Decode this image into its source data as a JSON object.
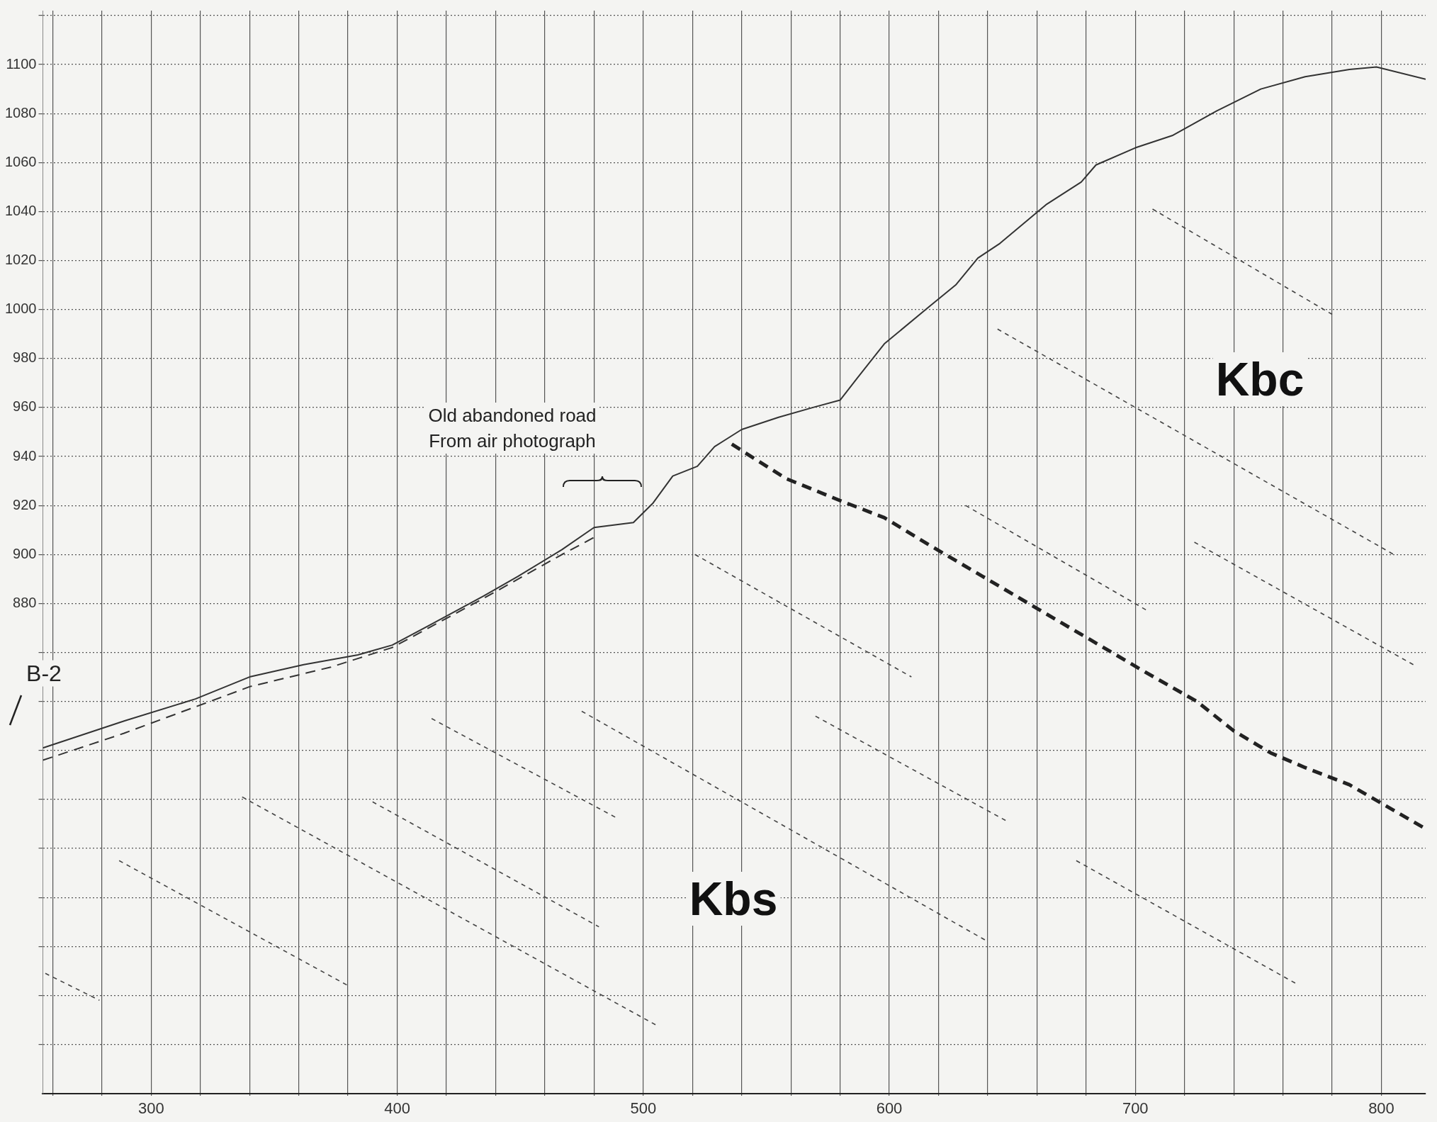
{
  "chart_data": {
    "type": "line",
    "xlim": [
      256,
      818
    ],
    "ylim": [
      680,
      1122
    ],
    "xticks": [
      {
        "value": 260,
        "label": null
      },
      {
        "value": 280,
        "label": null
      },
      300,
      {
        "value": 320,
        "label": null
      },
      {
        "value": 340,
        "label": null
      },
      {
        "value": 360,
        "label": null
      },
      {
        "value": 380,
        "label": null
      },
      400,
      {
        "value": 420,
        "label": null
      },
      {
        "value": 440,
        "label": null
      },
      {
        "value": 460,
        "label": null
      },
      {
        "value": 480,
        "label": null
      },
      500,
      {
        "value": 520,
        "label": null
      },
      {
        "value": 540,
        "label": null
      },
      {
        "value": 560,
        "label": null
      },
      {
        "value": 580,
        "label": null
      },
      600,
      {
        "value": 620,
        "label": null
      },
      {
        "value": 640,
        "label": null
      },
      {
        "value": 660,
        "label": null
      },
      {
        "value": 680,
        "label": null
      },
      700,
      {
        "value": 720,
        "label": null
      },
      {
        "value": 740,
        "label": null
      },
      {
        "value": 760,
        "label": null
      },
      {
        "value": 780,
        "label": null
      },
      800
    ],
    "yticks": [
      {
        "value": 700,
        "label": null
      },
      {
        "value": 720,
        "label": null
      },
      {
        "value": 740,
        "label": null
      },
      {
        "value": 760,
        "label": null
      },
      {
        "value": 780,
        "label": null
      },
      {
        "value": 800,
        "label": null
      },
      {
        "value": 820,
        "label": null
      },
      {
        "value": 840,
        "label": null
      },
      {
        "value": 860,
        "label": null
      },
      880,
      900,
      920,
      940,
      960,
      980,
      1000,
      1020,
      1040,
      1060,
      1080,
      1100,
      {
        "value": 1120,
        "label": null
      }
    ],
    "grid": true,
    "legend": false,
    "marker": "none",
    "series": [
      {
        "color": "#333333",
        "line_style": "solid",
        "x": [
          256,
          289,
          318,
          340,
          362,
          384,
          398,
          413,
          435,
          449,
          467,
          480,
          496,
          504,
          512,
          522,
          529,
          540,
          555,
          569,
          580,
          587,
          598,
          616,
          627,
          636,
          645,
          664,
          678,
          684,
          700,
          715,
          733,
          751,
          769,
          787,
          798,
          818
        ],
        "values": [
          821,
          832,
          841,
          850,
          855,
          859,
          863,
          871,
          883,
          891,
          902,
          911,
          913,
          921,
          932,
          936,
          944,
          951,
          956,
          960,
          963,
          972,
          986,
          1001,
          1010,
          1021,
          1027,
          1043,
          1052,
          1059,
          1066,
          1071,
          1081,
          1090,
          1095,
          1098,
          1099,
          1094
        ]
      },
      {
        "color": "#333333",
        "line_style": "dashed",
        "x": [
          256,
          289,
          340,
          373,
          398,
          435,
          467,
          482
        ],
        "values": [
          816,
          827,
          846,
          854,
          862,
          882,
          900,
          908
        ]
      },
      {
        "color": "#222222",
        "line_style": "dashed",
        "x": [
          536,
          558,
          580,
          598,
          616,
          638,
          660,
          682,
          704,
          725,
          740,
          755,
          769,
          787,
          818
        ],
        "values": [
          945,
          931,
          922,
          915,
          904,
          891,
          878,
          865,
          852,
          840,
          828,
          819,
          813,
          806,
          788
        ]
      },
      {
        "color": "#444444",
        "line_style": "dotted",
        "x": [
          707,
          780
        ],
        "values": [
          1041,
          998
        ]
      },
      {
        "color": "#444444",
        "line_style": "dotted",
        "x": [
          644,
          805
        ],
        "values": [
          992,
          900
        ]
      },
      {
        "color": "#444444",
        "line_style": "dotted",
        "x": [
          631,
          705
        ],
        "values": [
          920,
          877
        ]
      },
      {
        "color": "#444444",
        "line_style": "dotted",
        "x": [
          724,
          813
        ],
        "values": [
          905,
          855
        ]
      },
      {
        "color": "#444444",
        "line_style": "dotted",
        "x": [
          521,
          609
        ],
        "values": [
          900,
          850
        ]
      },
      {
        "color": "#444444",
        "line_style": "dotted",
        "x": [
          570,
          648
        ],
        "values": [
          834,
          791
        ]
      },
      {
        "color": "#444444",
        "line_style": "dotted",
        "x": [
          475,
          640
        ],
        "values": [
          836,
          742
        ]
      },
      {
        "color": "#444444",
        "line_style": "dotted",
        "x": [
          676,
          765
        ],
        "values": [
          775,
          725
        ]
      },
      {
        "color": "#444444",
        "line_style": "dotted",
        "x": [
          414,
          490
        ],
        "values": [
          833,
          792
        ]
      },
      {
        "color": "#444444",
        "line_style": "dotted",
        "x": [
          337,
          505
        ],
        "values": [
          801,
          708
        ]
      },
      {
        "color": "#444444",
        "line_style": "dotted",
        "x": [
          390,
          482
        ],
        "values": [
          799,
          748
        ]
      },
      {
        "color": "#444444",
        "line_style": "dotted",
        "x": [
          287,
          380
        ],
        "values": [
          775,
          724
        ]
      },
      {
        "color": "#444444",
        "line_style": "dotted",
        "x": [
          257,
          279
        ],
        "values": [
          729,
          718
        ]
      }
    ],
    "annotations": [
      "B-2",
      "Old abandoned road\nFrom air photograph",
      "Kbc",
      "Kbs"
    ]
  }
}
